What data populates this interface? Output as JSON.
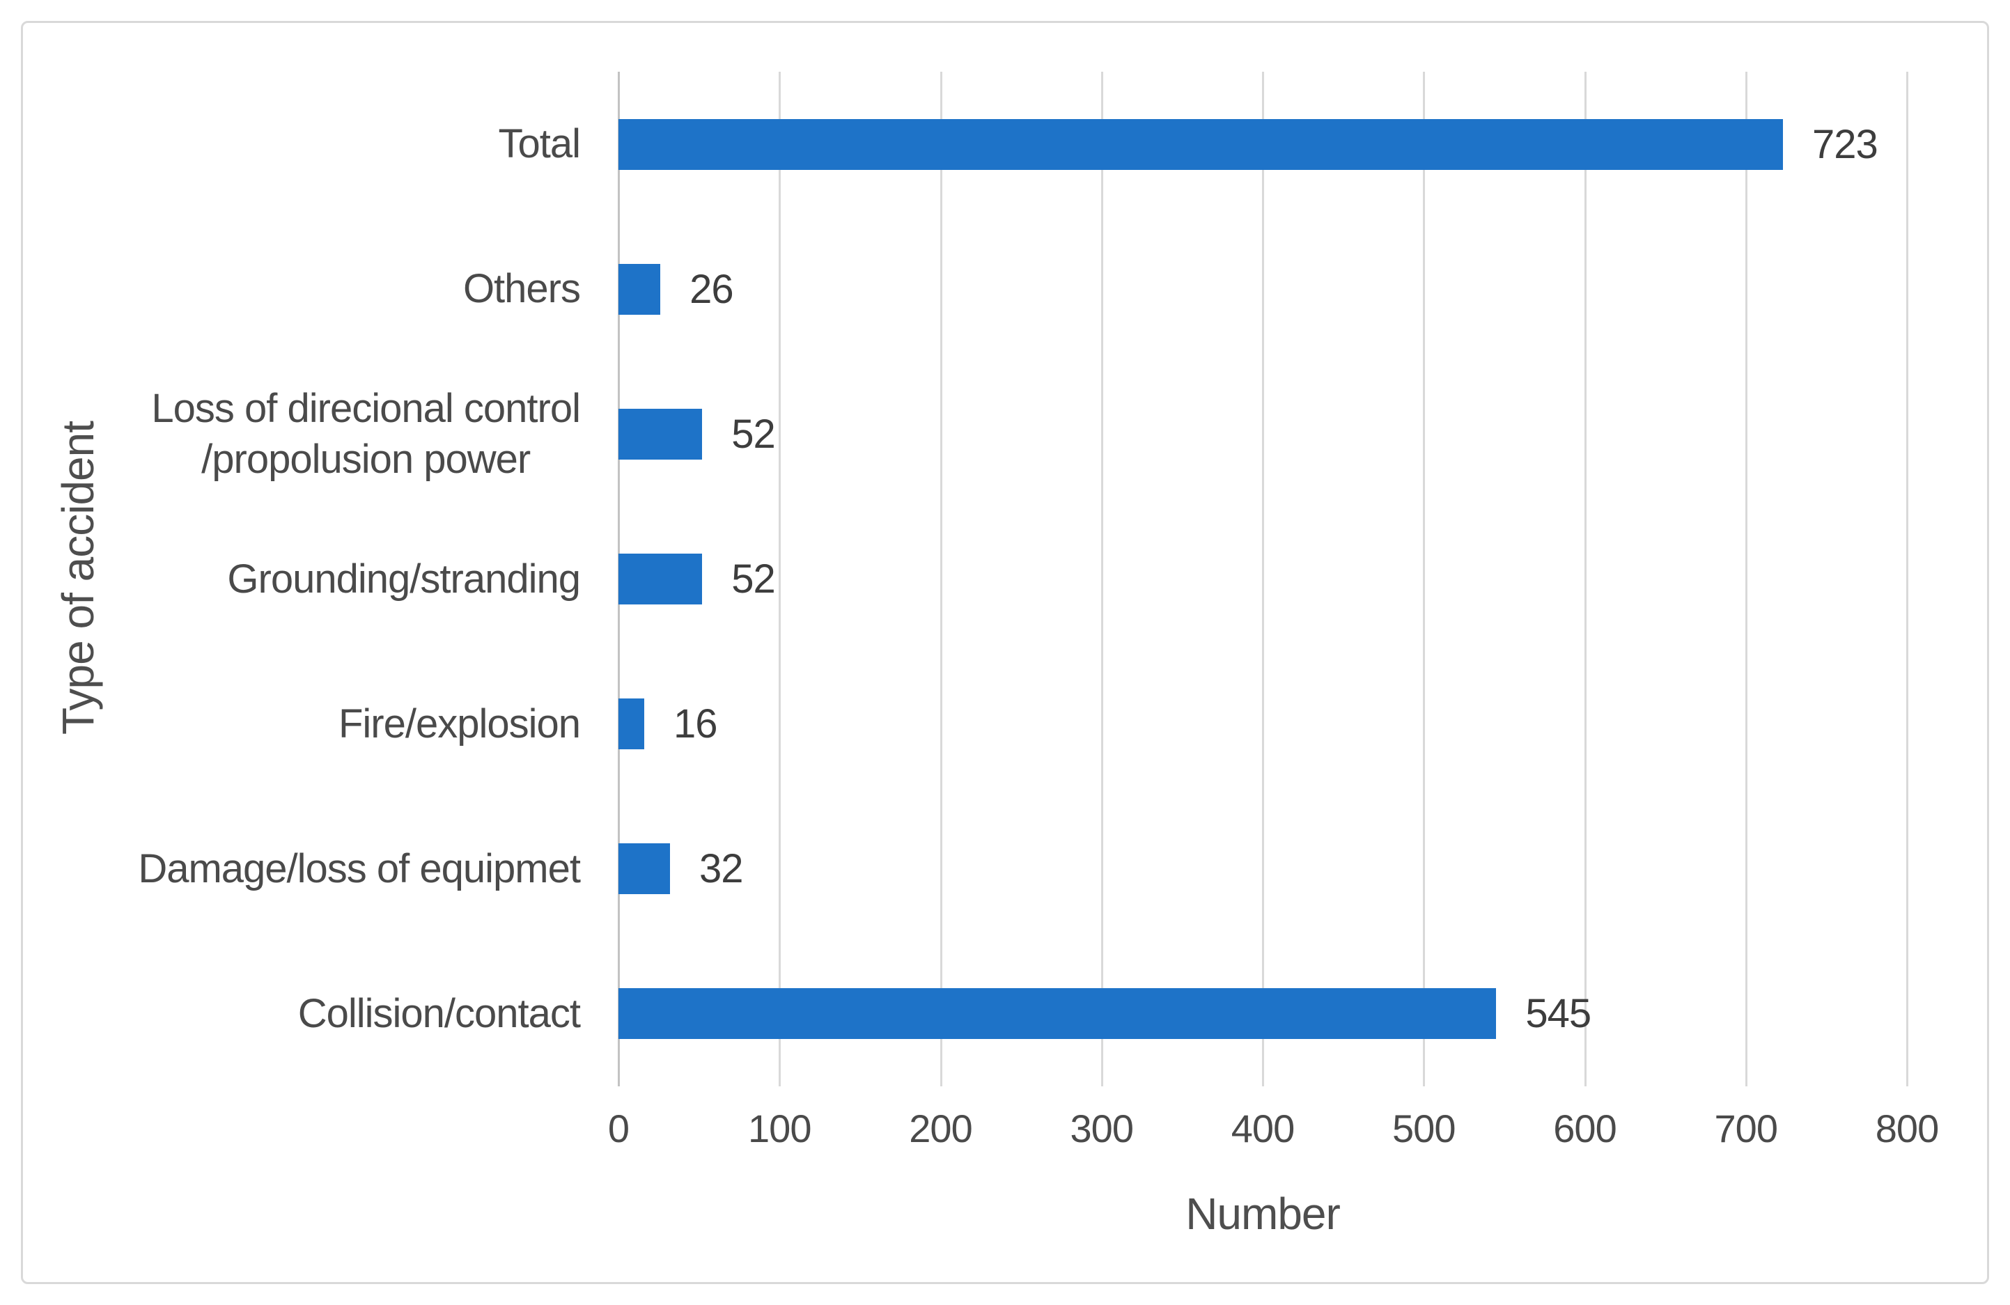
{
  "chart_data": {
    "type": "bar",
    "orientation": "horizontal",
    "title": "",
    "xlabel": "Number",
    "ylabel": "Type of accident",
    "xlim": [
      0,
      800
    ],
    "xticks": [
      0,
      100,
      200,
      300,
      400,
      500,
      600,
      700,
      800
    ],
    "grid": true,
    "legend": false,
    "bar_color": "#1e73c8",
    "categories": [
      "Total",
      "Others",
      "Loss of direcional control /propolusion power",
      "Grounding/stranding",
      "Fire/explosion",
      "Damage/loss of equipmet",
      "Collision/contact"
    ],
    "category_display_lines": [
      [
        "Total"
      ],
      [
        "Others"
      ],
      [
        "Loss of direcional control",
        "/propolusion power"
      ],
      [
        "Grounding/stranding"
      ],
      [
        "Fire/explosion"
      ],
      [
        "Damage/loss of equipmet"
      ],
      [
        "Collision/contact"
      ]
    ],
    "values": [
      723,
      26,
      52,
      52,
      16,
      32,
      545
    ],
    "data_labels": [
      "723",
      "26",
      "52",
      "52",
      "16",
      "32",
      "545"
    ]
  }
}
